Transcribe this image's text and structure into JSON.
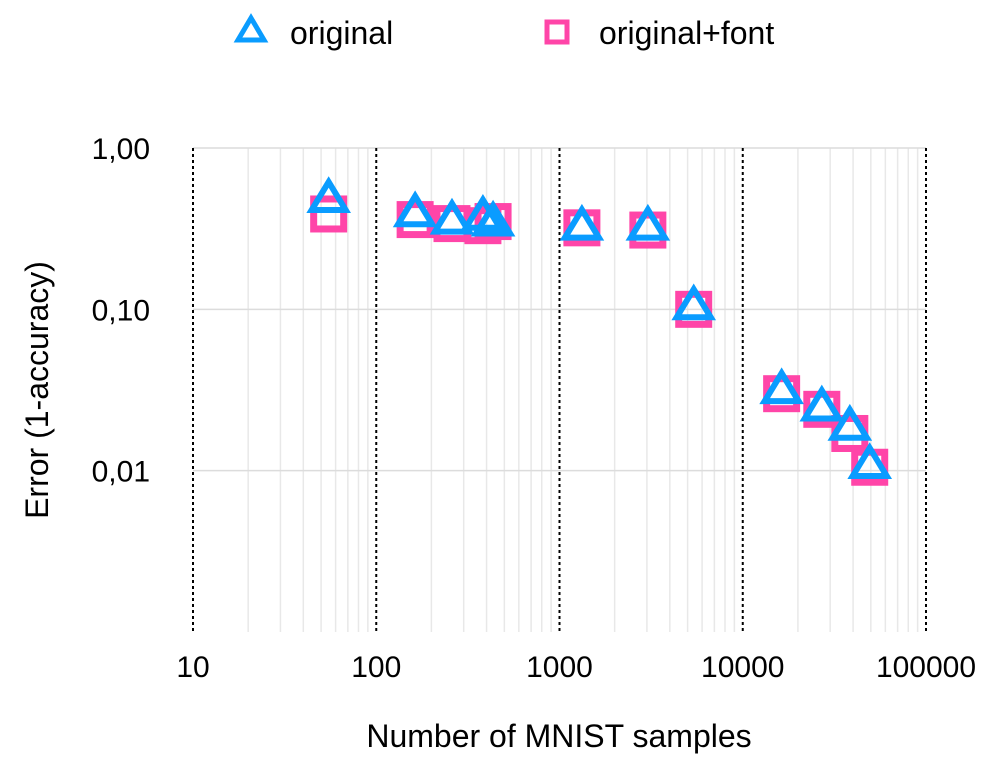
{
  "chart_data": {
    "type": "scatter",
    "title": "",
    "xlabel": "Number of MNIST samples",
    "ylabel": "Error (1-accuracy)",
    "xscale": "log",
    "yscale": "log",
    "xlim": [
      10,
      100000
    ],
    "ylim": [
      0.001,
      1
    ],
    "xticks": [
      10,
      100,
      1000,
      10000,
      100000
    ],
    "xtick_labels": [
      "10",
      "100",
      "1000",
      "10000",
      "100000"
    ],
    "yticks": [
      1,
      0.1,
      0.01
    ],
    "ytick_labels": [
      "1,00",
      "0,10",
      "0,01"
    ],
    "grid": true,
    "legend_position": "top",
    "series": [
      {
        "name": "original",
        "marker": "triangle",
        "color": "#0a9cff",
        "x": [
          55,
          163,
          259,
          382,
          434,
          1325,
          3035,
          5400,
          16300,
          27000,
          38400,
          49300
        ],
        "y": [
          0.49,
          0.4,
          0.36,
          0.38,
          0.35,
          0.33,
          0.33,
          0.106,
          0.032,
          0.025,
          0.019,
          0.011
        ]
      },
      {
        "name": "original+font",
        "marker": "square",
        "color": "#ff45a8",
        "x": [
          55,
          163,
          259,
          382,
          434,
          1325,
          3035,
          5400,
          16300,
          27000,
          38400,
          49300
        ],
        "y": [
          0.39,
          0.36,
          0.34,
          0.33,
          0.35,
          0.32,
          0.31,
          0.1,
          0.03,
          0.024,
          0.017,
          0.0105
        ]
      }
    ]
  }
}
